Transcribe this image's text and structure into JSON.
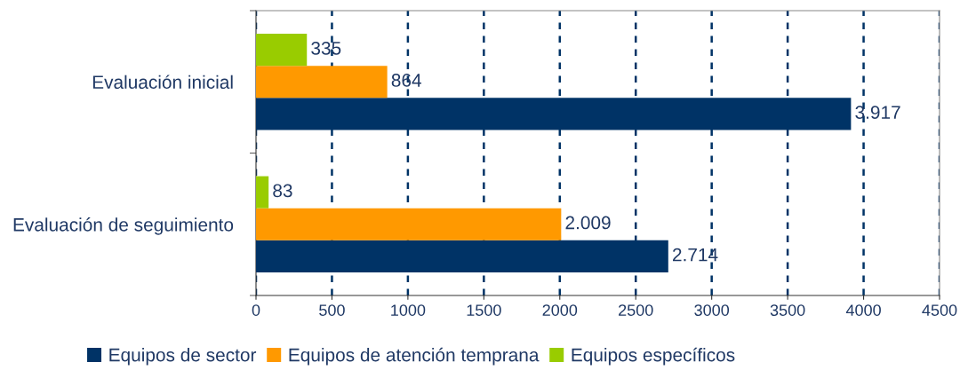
{
  "chart_data": {
    "type": "bar",
    "orientation": "horizontal",
    "categories": [
      "Evaluación inicial",
      "Evaluación de seguimiento"
    ],
    "series": [
      {
        "name": "Equipos de sector",
        "color": "#003366",
        "values": [
          3917,
          2714
        ],
        "value_labels": [
          "3.917",
          "2.714"
        ]
      },
      {
        "name": "Equipos de atención temprana",
        "color": "#ff9900",
        "values": [
          864,
          2009
        ],
        "value_labels": [
          "864",
          "2.009"
        ]
      },
      {
        "name": "Equipos específicos",
        "color": "#99cc00",
        "values": [
          335,
          83
        ],
        "value_labels": [
          "335",
          "83"
        ]
      }
    ],
    "xlim": [
      0,
      4500
    ],
    "xticks": [
      0,
      500,
      1000,
      1500,
      2000,
      2500,
      3000,
      3500,
      4000,
      4500
    ],
    "grid": "x",
    "legend": "bottom"
  }
}
